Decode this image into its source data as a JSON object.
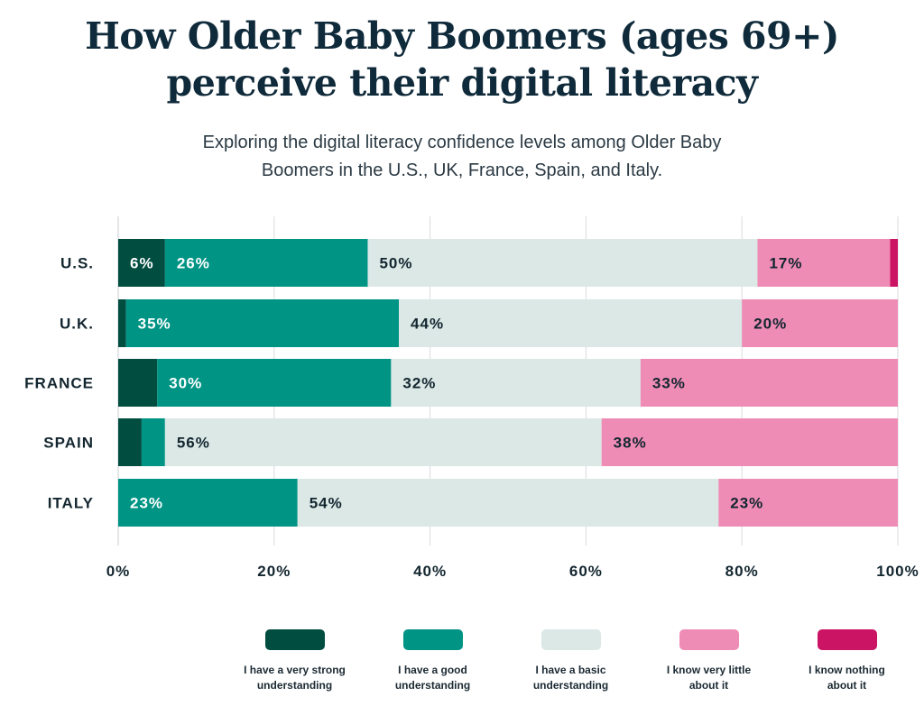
{
  "chart_data": {
    "type": "bar",
    "orientation": "horizontal",
    "stacked": true,
    "title_line1": "How Older Baby Boomers (ages 69+)",
    "title_line2": "perceive their digital literacy",
    "subtitle_line1": "Exploring the digital literacy confidence levels among Older Baby",
    "subtitle_line2": "Boomers in the U.S., UK, France, Spain, and Italy.",
    "categories": [
      "U.S.",
      "U.K.",
      "FRANCE",
      "SPAIN",
      "ITALY"
    ],
    "series": [
      {
        "name": "I have a very strong understanding",
        "legend_line1": "I have a very strong",
        "legend_line2": "understanding",
        "color": "#014d40",
        "label_color": "#ffffff",
        "values": [
          6,
          1,
          5,
          3,
          0
        ],
        "labels": [
          "6%",
          null,
          null,
          null,
          null
        ]
      },
      {
        "name": "I have a good understanding",
        "legend_line1": "I have a good",
        "legend_line2": "understanding",
        "color": "#009485",
        "label_color": "#ffffff",
        "values": [
          26,
          35,
          30,
          3,
          23
        ],
        "labels": [
          "26%",
          "35%",
          "30%",
          null,
          "23%"
        ]
      },
      {
        "name": "I have a basic understanding",
        "legend_line1": "I have a basic",
        "legend_line2": "understanding",
        "color": "#dbe8e6",
        "label_color": "#13262f",
        "values": [
          50,
          44,
          32,
          56,
          54
        ],
        "labels": [
          "50%",
          "44%",
          "32%",
          "56%",
          "54%"
        ]
      },
      {
        "name": "I know very little about it",
        "legend_line1": "I know very little",
        "legend_line2": "about it",
        "color": "#ee8cb6",
        "label_color": "#13262f",
        "values": [
          17,
          20,
          33,
          38,
          23
        ],
        "labels": [
          "17%",
          "20%",
          "33%",
          "38%",
          "23%"
        ]
      },
      {
        "name": "I know nothing about it",
        "legend_line1": "I know nothing",
        "legend_line2": "about it",
        "color": "#cc1464",
        "label_color": "#ffffff",
        "values": [
          1,
          0,
          0,
          0,
          0
        ],
        "labels": [
          null,
          null,
          null,
          null,
          null
        ]
      }
    ],
    "xlim": [
      0,
      100
    ],
    "xticks": [
      0,
      20,
      40,
      60,
      80,
      100
    ],
    "xtick_labels": [
      "0%",
      "20%",
      "40%",
      "60%",
      "80%",
      "100%"
    ],
    "grid": true,
    "legend_position": "bottom"
  }
}
